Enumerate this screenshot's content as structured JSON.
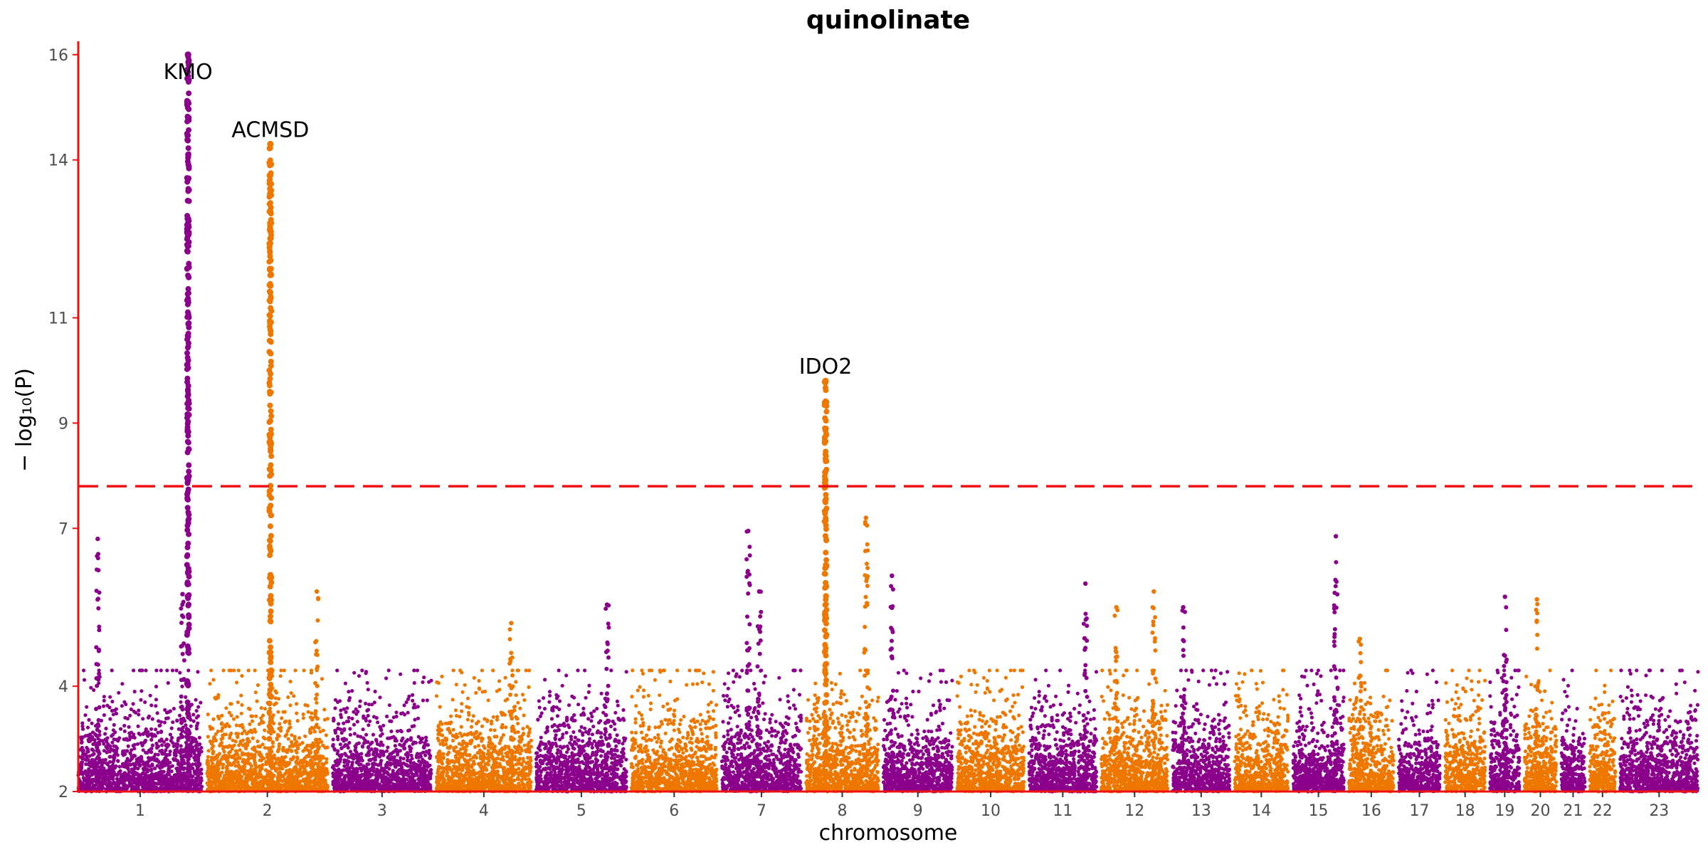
{
  "chart_data": {
    "type": "scatter",
    "subtype": "manhattan",
    "title": "quinolinate",
    "xlabel": "chromosome",
    "ylabel": "− log₁₀(P)",
    "ylim": [
      2,
      16.2
    ],
    "yticks": [
      2,
      4,
      7,
      9,
      11,
      14,
      16
    ],
    "threshold": 7.8,
    "threshold_color": "#ee1111",
    "axis_color": "#ee1111",
    "colors": {
      "odd": "#8b008b",
      "even": "#ee7700"
    },
    "grid": false,
    "legend": "none",
    "chromosomes": [
      {
        "label": "1",
        "length": 248
      },
      {
        "label": "2",
        "length": 242
      },
      {
        "label": "3",
        "length": 198
      },
      {
        "label": "4",
        "length": 190
      },
      {
        "label": "5",
        "length": 181
      },
      {
        "label": "6",
        "length": 171
      },
      {
        "label": "7",
        "length": 159
      },
      {
        "label": "8",
        "length": 145
      },
      {
        "label": "9",
        "length": 138
      },
      {
        "label": "10",
        "length": 134
      },
      {
        "label": "11",
        "length": 135
      },
      {
        "label": "12",
        "length": 133
      },
      {
        "label": "13",
        "length": 114
      },
      {
        "label": "14",
        "length": 107
      },
      {
        "label": "15",
        "length": 102
      },
      {
        "label": "16",
        "length": 90
      },
      {
        "label": "17",
        "length": 83
      },
      {
        "label": "18",
        "length": 80
      },
      {
        "label": "19",
        "length": 59
      },
      {
        "label": "20",
        "length": 64
      },
      {
        "label": "21",
        "length": 47
      },
      {
        "label": "22",
        "length": 51
      },
      {
        "label": "23",
        "length": 156
      }
    ],
    "peaks": [
      {
        "chrom": "1",
        "pos": 220,
        "max": 16.0,
        "gene": "KMO",
        "label_below": true
      },
      {
        "chrom": "2",
        "pos": 127,
        "max": 14.3,
        "gene": "ACMSD",
        "label_below": false
      },
      {
        "chrom": "8",
        "pos": 39,
        "max": 9.8,
        "gene": "IDO2",
        "label_below": false
      },
      {
        "chrom": "1",
        "pos": 39,
        "max": 6.8
      },
      {
        "chrom": "1",
        "pos": 209,
        "max": 5.75
      },
      {
        "chrom": "2",
        "pos": 220,
        "max": 5.8
      },
      {
        "chrom": "5",
        "pos": 142,
        "max": 5.55
      },
      {
        "chrom": "7",
        "pos": 53,
        "max": 6.95
      },
      {
        "chrom": "7",
        "pos": 75,
        "max": 5.8
      },
      {
        "chrom": "8",
        "pos": 120,
        "max": 7.2
      },
      {
        "chrom": "9",
        "pos": 17,
        "max": 6.1
      },
      {
        "chrom": "11",
        "pos": 113,
        "max": 5.95
      },
      {
        "chrom": "12",
        "pos": 105,
        "max": 5.8
      },
      {
        "chrom": "13",
        "pos": 21,
        "max": 5.5
      },
      {
        "chrom": "15",
        "pos": 86,
        "max": 6.85
      },
      {
        "chrom": "16",
        "pos": 22,
        "max": 4.9
      },
      {
        "chrom": "19",
        "pos": 30,
        "max": 5.7
      },
      {
        "chrom": "20",
        "pos": 25,
        "max": 5.65
      },
      {
        "chrom": "4",
        "pos": 150,
        "max": 5.2
      },
      {
        "chrom": "12",
        "pos": 30,
        "max": 5.5
      }
    ]
  }
}
